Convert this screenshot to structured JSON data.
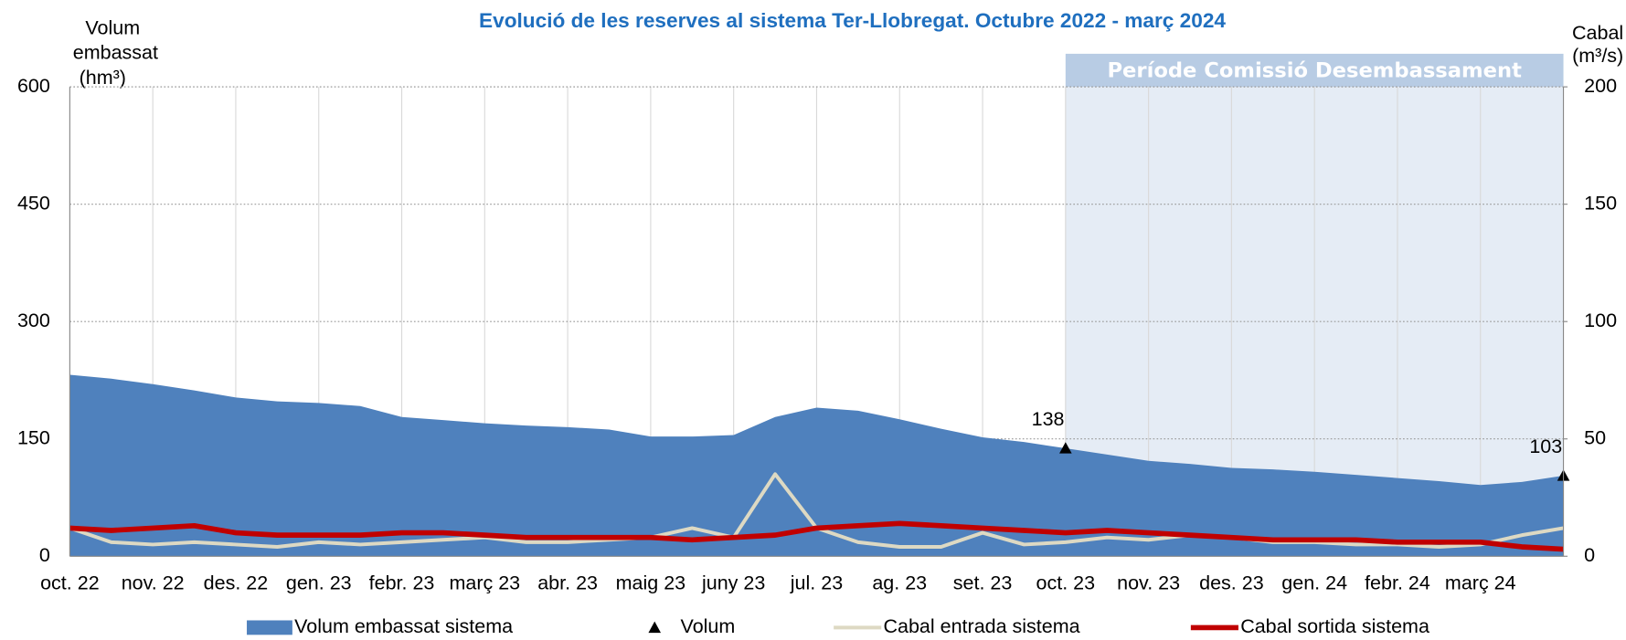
{
  "chart_data": {
    "type": "combo",
    "title": "Evolució de les reserves al sistema Ter-Llobregat. Octubre 2022 - març 2024",
    "ylabel": [
      "Volum",
      "embassat",
      "(hm³)"
    ],
    "y2label": [
      "Cabal",
      "(m³/s)"
    ],
    "categories": [
      "oct. 22",
      null,
      "nov. 22",
      null,
      "des. 22",
      null,
      "gen. 23",
      null,
      "febr. 23",
      null,
      "març 23",
      null,
      "abr. 23",
      null,
      "maig 23",
      null,
      "juny 23",
      null,
      "jul. 23",
      null,
      "ag. 23",
      null,
      "set. 23",
      null,
      "oct. 23",
      null,
      "nov. 23",
      null,
      "des. 23",
      null,
      "gen. 24",
      null,
      "febr. 24",
      null,
      "març 24",
      null,
      null
    ],
    "ylim": [
      0,
      600
    ],
    "yticks": [
      0,
      150,
      300,
      450,
      600
    ],
    "y2lim": [
      0,
      200
    ],
    "y2ticks": [
      0,
      50,
      100,
      150,
      200
    ],
    "grid": true,
    "shaded_region": {
      "label": "Període Comissió Desembassament",
      "from": "oct. 23",
      "color": "#dce6f2",
      "header_color": "#b8cce4"
    },
    "series": [
      {
        "name": "Volum embassat sistema",
        "style": "area",
        "color": "#4f81bd",
        "values": [
          232,
          227,
          220,
          212,
          203,
          198,
          196,
          192,
          178,
          174,
          170,
          167,
          165,
          162,
          153,
          153,
          155,
          178,
          190,
          186,
          175,
          163,
          152,
          146,
          138,
          130,
          122,
          118,
          113,
          111,
          108,
          104,
          100,
          96,
          91,
          95,
          103
        ]
      },
      {
        "name": "Volum",
        "style": "marker",
        "color": "#000000",
        "values": [
          null,
          null,
          null,
          null,
          null,
          null,
          null,
          null,
          null,
          null,
          null,
          null,
          null,
          null,
          null,
          null,
          null,
          null,
          null,
          null,
          null,
          null,
          null,
          null,
          138,
          null,
          null,
          null,
          null,
          null,
          null,
          null,
          null,
          null,
          null,
          null,
          103
        ]
      },
      {
        "name": "Cabal entrada sistema",
        "style": "line",
        "axis": "y2",
        "color": "#ddd9c3",
        "values": [
          12,
          6,
          5,
          6,
          5,
          4,
          6,
          5,
          6,
          7,
          8,
          6,
          6,
          7,
          8,
          12,
          8,
          35,
          12,
          6,
          4,
          4,
          10,
          5,
          6,
          8,
          7,
          9,
          8,
          6,
          6,
          5,
          5,
          4,
          5,
          9,
          12
        ]
      },
      {
        "name": "Cabal sortida sistema",
        "style": "line",
        "axis": "y2",
        "color": "#c00000",
        "values": [
          12,
          11,
          12,
          13,
          10,
          9,
          9,
          9,
          10,
          10,
          9,
          8,
          8,
          8,
          8,
          7,
          8,
          9,
          12,
          13,
          14,
          13,
          12,
          11,
          10,
          11,
          10,
          9,
          8,
          7,
          7,
          7,
          6,
          6,
          6,
          4,
          3
        ]
      }
    ]
  }
}
